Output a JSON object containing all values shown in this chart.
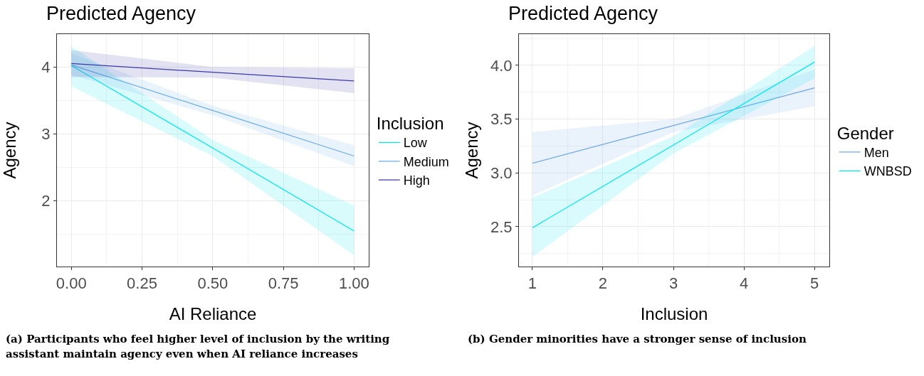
{
  "chart_data": [
    {
      "type": "line",
      "title": "Predicted Agency",
      "xlabel": "AI Reliance",
      "ylabel": "Agency",
      "legend_title": "Inclusion",
      "legend": "right",
      "grid": true,
      "xlim": [
        -0.051,
        1.052
      ],
      "xticks": [
        {
          "value": 0,
          "label": "0.00"
        },
        {
          "value": 0.25,
          "label": "0.25"
        },
        {
          "value": 0.5,
          "label": "0.50"
        },
        {
          "value": 0.75,
          "label": "0.75"
        },
        {
          "value": 1,
          "label": "1.00"
        }
      ],
      "ylim": [
        1.02,
        4.49
      ],
      "yticks": [
        2,
        3,
        4
      ],
      "x": [
        0,
        0.5,
        1
      ],
      "series": [
        {
          "name": "Low",
          "color": "#00e5ee",
          "values": [
            4.02,
            2.79,
            1.55
          ],
          "lower": [
            3.71,
            2.67,
            1.19
          ],
          "upper": [
            4.31,
            2.91,
            1.93
          ]
        },
        {
          "name": "Medium",
          "color": "#6aaee8",
          "values": [
            4.03,
            3.35,
            2.67
          ],
          "lower": [
            3.88,
            3.28,
            2.52
          ],
          "upper": [
            4.2,
            3.42,
            2.83
          ]
        },
        {
          "name": "High",
          "color": "#3b3ba8",
          "values": [
            4.05,
            3.92,
            3.79
          ],
          "lower": [
            3.85,
            3.84,
            3.61
          ],
          "upper": [
            4.25,
            4.0,
            3.98
          ]
        }
      ],
      "annotations": [
        "(a) Participants who feel higher level of inclusion by the writing assistant maintain agency even when AI reliance increases"
      ]
    },
    {
      "type": "line",
      "title": "Predicted Agency",
      "xlabel": "Inclusion",
      "ylabel": "Agency",
      "legend_title": "Gender",
      "legend": "right",
      "grid": true,
      "xlim": [
        0.81,
        5.21
      ],
      "xticks": [
        1,
        2,
        3,
        4,
        5
      ],
      "ylim": [
        2.13,
        4.29
      ],
      "yticks": [
        {
          "value": 2.5,
          "label": "2.5"
        },
        {
          "value": 3,
          "label": "3.0"
        },
        {
          "value": 3.5,
          "label": "3.5"
        },
        {
          "value": 4,
          "label": "4.0"
        }
      ],
      "x": [
        1,
        3,
        5
      ],
      "series": [
        {
          "name": "Men",
          "color": "#6fa8e8",
          "values": [
            3.09,
            3.44,
            3.79
          ],
          "lower": [
            2.79,
            3.38,
            3.62
          ],
          "upper": [
            3.38,
            3.5,
            3.96
          ]
        },
        {
          "name": "WNBSD",
          "color": "#00e5f0",
          "values": [
            2.49,
            3.26,
            4.03
          ],
          "lower": [
            2.22,
            3.18,
            3.88
          ],
          "upper": [
            2.77,
            3.34,
            4.18
          ]
        }
      ],
      "annotations": [
        "(b) Gender minorities have a stronger sense of inclusion"
      ]
    }
  ]
}
